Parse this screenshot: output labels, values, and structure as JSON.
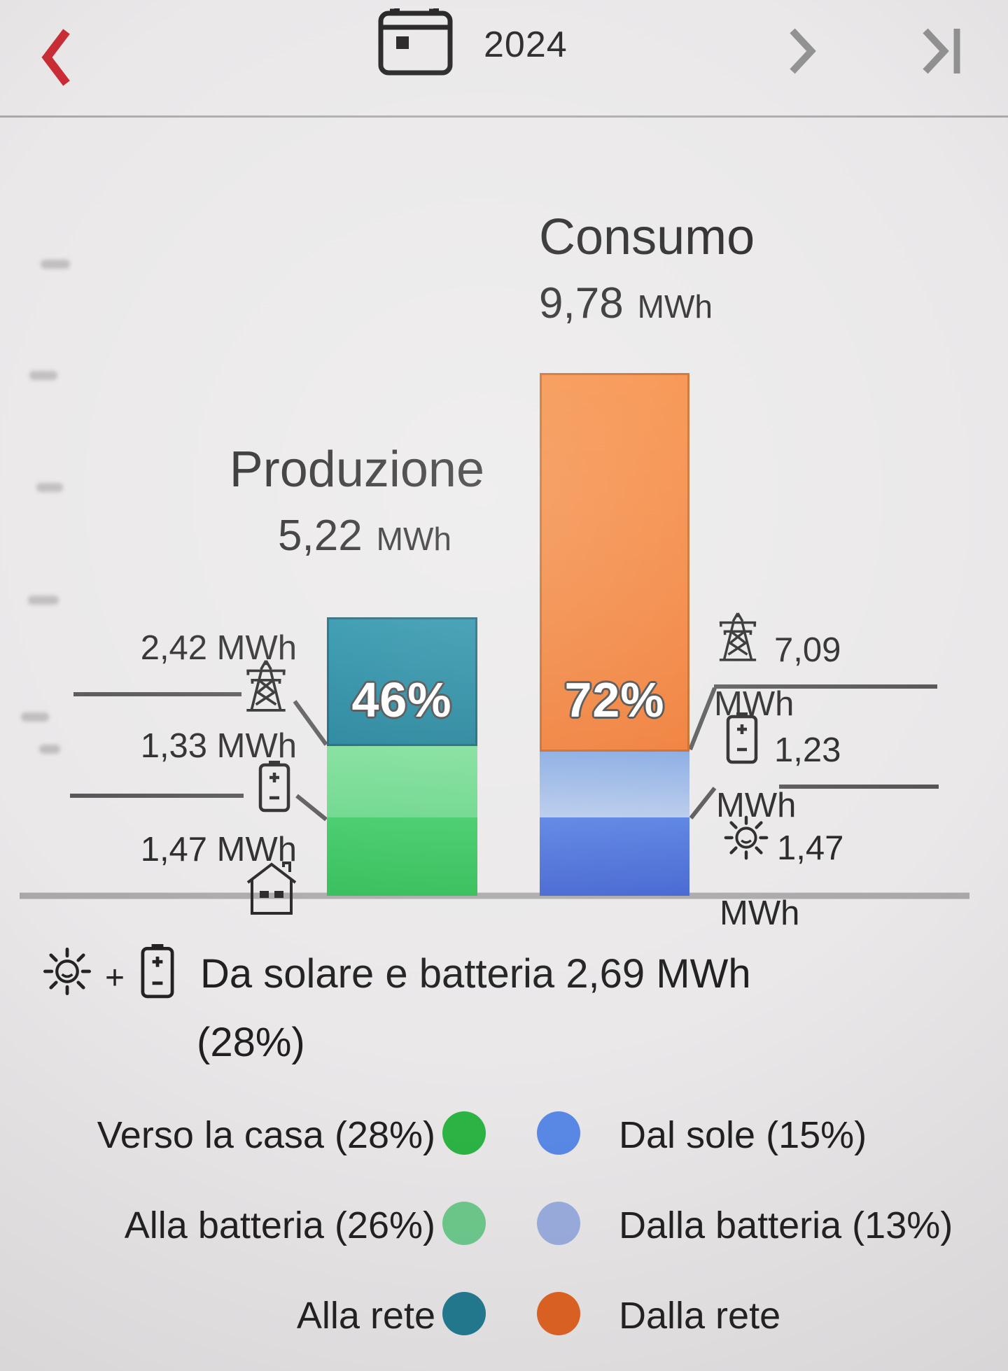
{
  "topbar": {
    "year": "2024"
  },
  "production": {
    "title": "Produzione",
    "value": "5,22",
    "unit": "MWh",
    "percent_label": "46%",
    "annotations": [
      {
        "icon": "grid-pylon",
        "label": "2,42 MWh"
      },
      {
        "icon": "battery",
        "label": "1,33 MWh"
      },
      {
        "icon": "house",
        "label": "1,47 MWh"
      }
    ]
  },
  "consumption": {
    "title": "Consumo",
    "value": "9,78",
    "unit": "MWh",
    "percent_label": "72%",
    "annotations": [
      {
        "icon": "grid-pylon",
        "value": "7,09",
        "unit": "MWh"
      },
      {
        "icon": "battery",
        "value": "1,23",
        "unit": "MWh"
      },
      {
        "icon": "sun",
        "value": "1,47",
        "unit": "MWh"
      }
    ]
  },
  "summary": {
    "icons": [
      "sun",
      "battery"
    ],
    "joiner": "+",
    "text": "Da solare e batteria 2,69 MWh",
    "percent_line": "(28%)"
  },
  "legend": {
    "rows": [
      {
        "left": {
          "label": "Verso la casa (28%)",
          "color": "#22b23c"
        },
        "right": {
          "label": "Dal sole (15%)",
          "color": "#5284e6"
        }
      },
      {
        "left": {
          "label": "Alla batteria (26%)",
          "color": "#66c887"
        },
        "right": {
          "label": "Dalla batteria (13%)",
          "color": "#95aade"
        }
      },
      {
        "left": {
          "label": "Alla rete",
          "color": "#17758c"
        },
        "right": {
          "label": "Dalla rete",
          "color": "#e05c16"
        }
      }
    ]
  },
  "chart_data": {
    "type": "bar",
    "stacked": true,
    "unit": "MWh",
    "categories": [
      "Produzione",
      "Consumo"
    ],
    "bars": [
      {
        "name": "Produzione",
        "total_mwh": 5.22,
        "total_label": "5,22 MWh",
        "percent_label": "46%",
        "segments": [
          {
            "name": "Verso la casa",
            "mwh": 1.47,
            "share": "28%",
            "color": "linear-gradient(#31c75c,#24b94c)"
          },
          {
            "name": "Alla batteria",
            "mwh": 1.33,
            "share": "26%",
            "color": "linear-gradient(#72dc90,#5fd381)"
          },
          {
            "name": "Alla rete",
            "mwh": 2.42,
            "share": "46%",
            "color": "linear-gradient(#1186a0,#0b7690)",
            "border": "#07566b"
          }
        ]
      },
      {
        "name": "Consumo",
        "total_mwh": 9.78,
        "total_label": "9,78 MWh",
        "percent_label": "72%",
        "segments": [
          {
            "name": "Dal sole",
            "mwh": 1.47,
            "share": "15%",
            "color": "linear-gradient(#4b77e0,#3a5ccf)"
          },
          {
            "name": "Dalla batteria",
            "mwh": 1.23,
            "share": "13%",
            "color": "linear-gradient(#7ba2e0,#b3c7ea)"
          },
          {
            "name": "Dalla rete",
            "mwh": 7.09,
            "color": "linear-gradient(#f58231,#ee7124)",
            "border": "#c55c14"
          }
        ]
      }
    ],
    "legend_position": "bottom",
    "grid": false
  }
}
